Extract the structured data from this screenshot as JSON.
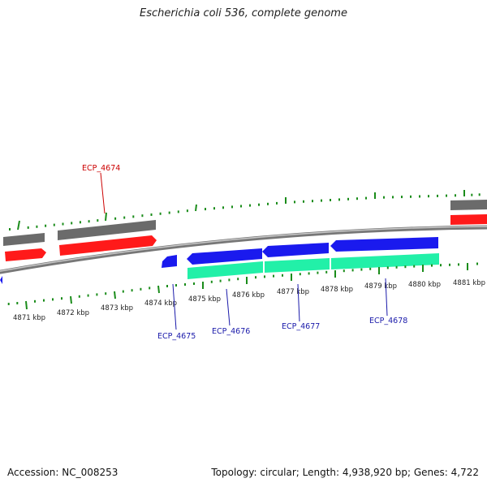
{
  "title": "Escherichia coli 536, complete genome",
  "footer": {
    "accession": "Accession: NC_008253",
    "summary": "Topology: circular; Length: 4,938,920 bp; Genes: 4,722"
  },
  "colors": {
    "background": "#ffffff",
    "backbone": "#8c8c8c",
    "cds_gray": "#6b6b6b",
    "cds_red": "#ff1a1a",
    "cds_blue": "#1a1aee",
    "cds_green": "#22f0a8",
    "tick_green": "#1a8c1a",
    "label_red": "#cc0000",
    "label_blue": "#1a1aaa"
  },
  "kbp_labels": [
    "4871 kbp",
    "4872 kbp",
    "4873 kbp",
    "4874 kbp",
    "4875 kbp",
    "4876 kbp",
    "4877 kbp",
    "4878 kbp",
    "4879 kbp",
    "4880 kbp",
    "4881 kbp"
  ],
  "gene_labels": {
    "ecp_4674": "ECP_4674",
    "ecp_4675": "ECP_4675",
    "ecp_4676": "ECP_4676",
    "ecp_4677": "ECP_4677",
    "ecp_4678": "ECP_4678"
  }
}
